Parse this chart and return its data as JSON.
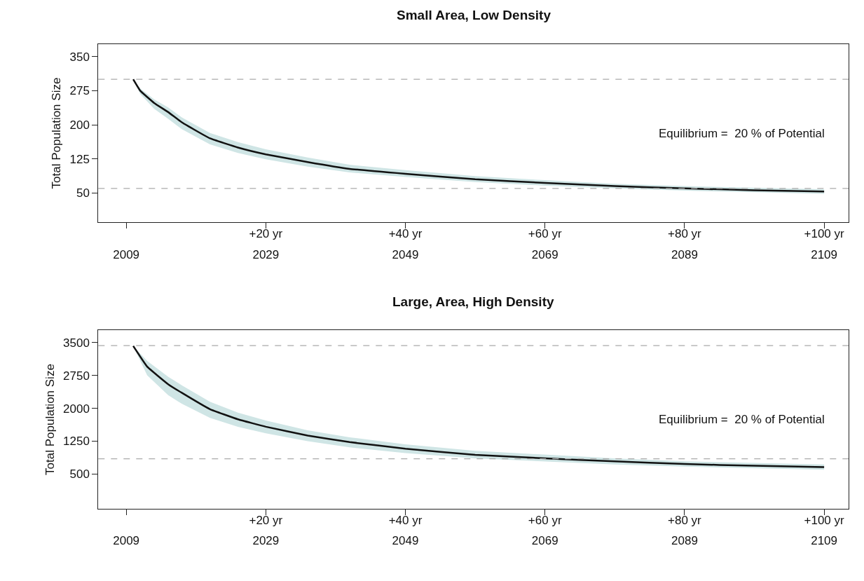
{
  "chart_data": [
    {
      "type": "line",
      "title": "Small Area, Low Density",
      "ylabel": "Total Population Size",
      "xlim": [
        2005,
        2112.5
      ],
      "ylim": [
        -15,
        378
      ],
      "xticks": [
        2009,
        2029,
        2049,
        2069,
        2089,
        2109
      ],
      "x2lim": [
        -4,
        103.5
      ],
      "x2ticks": [
        {
          "value": 20,
          "label": "+20 yr"
        },
        {
          "value": 40,
          "label": "+40 yr"
        },
        {
          "value": 60,
          "label": "+60 yr"
        },
        {
          "value": 80,
          "label": "+80 yr"
        },
        {
          "value": 100,
          "label": "+100 yr"
        }
      ],
      "yticks": [
        50,
        125,
        200,
        275,
        350
      ],
      "x": [
        2010,
        2011,
        2013,
        2015,
        2017,
        2021,
        2025,
        2029,
        2035,
        2041,
        2049,
        2059,
        2069,
        2079,
        2089,
        2099,
        2109
      ],
      "series": [
        {
          "color": "#111111",
          "values": [
            300,
            275,
            248,
            228,
            205,
            170,
            150,
            135,
            118,
            103,
            92,
            80,
            72,
            65,
            60,
            56,
            53
          ],
          "lower": [
            300,
            268,
            235,
            213,
            190,
            157,
            138,
            124,
            108,
            95,
            85,
            74,
            66,
            60,
            55,
            51,
            48
          ],
          "upper": [
            300,
            280,
            256,
            238,
            216,
            182,
            162,
            146,
            128,
            112,
            100,
            87,
            78,
            70,
            65,
            61,
            58
          ]
        }
      ],
      "ref_lines": [
        {
          "axis": "y",
          "value": 300,
          "color": "#aaaaaa",
          "line_style": "dashed"
        },
        {
          "axis": "y",
          "value": 60,
          "color": "#aaaaaa",
          "line_style": "dashed"
        }
      ],
      "annotations": [
        "Equilibrium =  20 % of Potential"
      ]
    },
    {
      "type": "line",
      "title": "Large, Area, High Density",
      "ylabel": "Total Population Size",
      "xlim": [
        2005,
        2112.5
      ],
      "ylim": [
        -290,
        3780
      ],
      "xticks": [
        2009,
        2029,
        2049,
        2069,
        2089,
        2109
      ],
      "x2lim": [
        -4,
        103.5
      ],
      "x2ticks": [
        {
          "value": 20,
          "label": "+20 yr"
        },
        {
          "value": 40,
          "label": "+40 yr"
        },
        {
          "value": 60,
          "label": "+60 yr"
        },
        {
          "value": 80,
          "label": "+80 yr"
        },
        {
          "value": 100,
          "label": "+100 yr"
        }
      ],
      "yticks": [
        500,
        1250,
        2000,
        2750,
        3500
      ],
      "x": [
        2010,
        2012,
        2015,
        2017,
        2021,
        2025,
        2029,
        2035,
        2041,
        2049,
        2059,
        2069,
        2079,
        2089,
        2099,
        2109
      ],
      "series": [
        {
          "color": "#111111",
          "values": [
            3420,
            2950,
            2550,
            2350,
            1980,
            1750,
            1580,
            1380,
            1230,
            1080,
            940,
            860,
            790,
            730,
            690,
            660
          ],
          "lower": [
            3420,
            2750,
            2300,
            2100,
            1780,
            1580,
            1430,
            1250,
            1110,
            980,
            860,
            790,
            720,
            670,
            630,
            600
          ],
          "upper": [
            3420,
            3080,
            2720,
            2520,
            2150,
            1900,
            1720,
            1500,
            1340,
            1180,
            1030,
            940,
            860,
            790,
            750,
            720
          ]
        }
      ],
      "ref_lines": [
        {
          "axis": "y",
          "value": 3430,
          "color": "#aaaaaa",
          "line_style": "dashed"
        },
        {
          "axis": "y",
          "value": 850,
          "color": "#aaaaaa",
          "line_style": "dashed"
        }
      ],
      "annotations": [
        "Equilibrium =  20 % of Potential"
      ]
    }
  ]
}
